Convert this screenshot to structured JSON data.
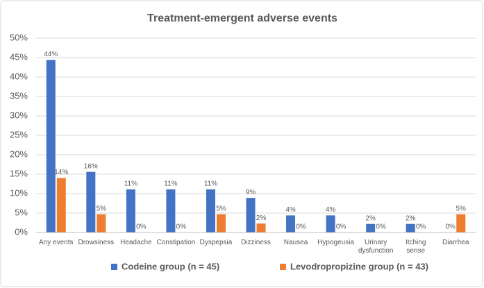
{
  "chart_data": {
    "type": "bar",
    "title": "Treatment-emergent adverse events",
    "categories": [
      "Any events",
      "Drowsiness",
      "Headache",
      "Constipation",
      "Dyspepsia",
      "Dizziness",
      "Nausea",
      "Hypogeusia",
      "Urinary dysfunction",
      "Itching sense",
      "Diarrhea"
    ],
    "series": [
      {
        "name": "Codeine group (n = 45)",
        "color": "#4472c4",
        "values": [
          44.4,
          15.6,
          11.1,
          11.1,
          11.1,
          8.9,
          4.4,
          4.4,
          2.2,
          2.2,
          0
        ],
        "value_labels": [
          "44%",
          "16%",
          "11%",
          "11%",
          "11%",
          "9%",
          "4%",
          "4%",
          "2%",
          "2%",
          "0%"
        ]
      },
      {
        "name": "Levodropropizine group (n = 43)",
        "color": "#ed7d31",
        "values": [
          14.0,
          4.7,
          0,
          0,
          4.7,
          2.3,
          0,
          0,
          0,
          0,
          4.7
        ],
        "value_labels": [
          "14%",
          "5%",
          "0%",
          "0%",
          "5%",
          "2%",
          "0%",
          "0%",
          "0%",
          "0%",
          "5%"
        ]
      }
    ],
    "ylim": [
      0,
      50
    ],
    "yticks": [
      {
        "value": 0,
        "label": "0%"
      },
      {
        "value": 5,
        "label": "5%"
      },
      {
        "value": 10,
        "label": "10%"
      },
      {
        "value": 15,
        "label": "15%"
      },
      {
        "value": 20,
        "label": "20%"
      },
      {
        "value": 25,
        "label": "25%"
      },
      {
        "value": 30,
        "label": "30%"
      },
      {
        "value": 35,
        "label": "35%"
      },
      {
        "value": 40,
        "label": "40%"
      },
      {
        "value": 45,
        "label": "45%"
      },
      {
        "value": 50,
        "label": "50%"
      }
    ],
    "grid": true,
    "legend": "bottom"
  }
}
